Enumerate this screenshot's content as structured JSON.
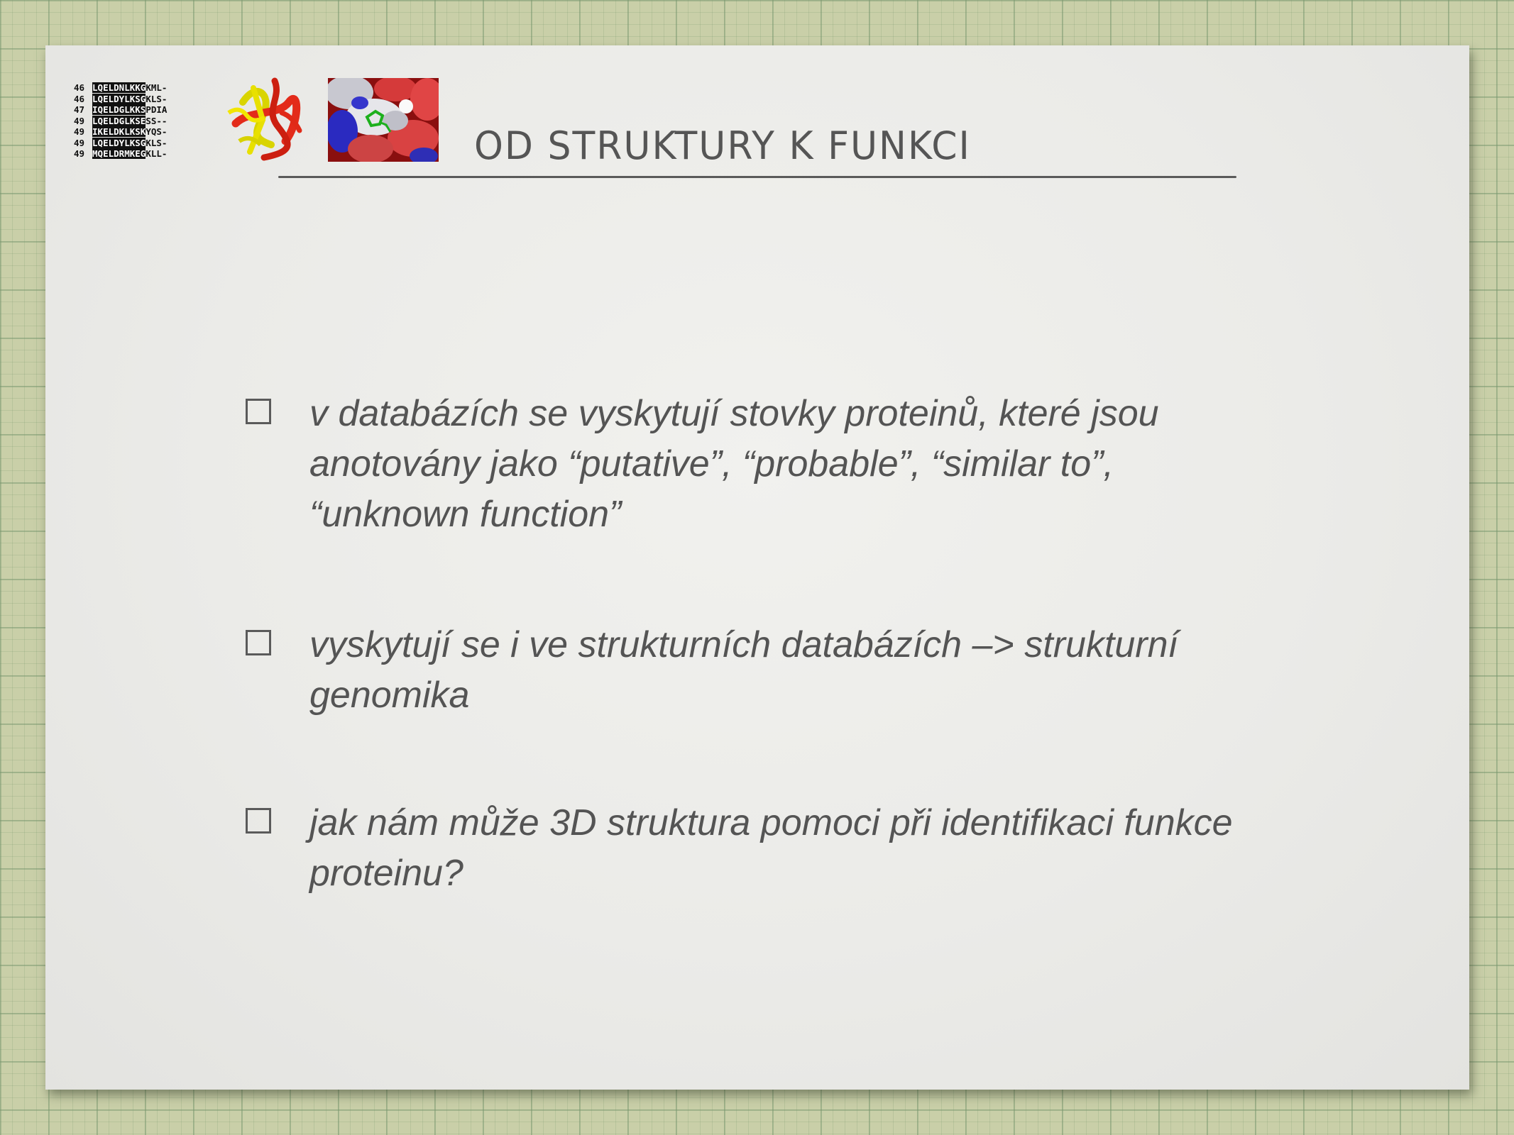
{
  "slide": {
    "title": "OD STRUKTURY K FUNKCI",
    "images": {
      "alignment": {
        "icon": "sequence-alignment-image",
        "rows": [
          {
            "num": "46",
            "seq": "LQELDNLKKGKML-"
          },
          {
            "num": "46",
            "seq": "LQELDYLKSGKLS-"
          },
          {
            "num": "47",
            "seq": "IQELDGLKKSPDIA"
          },
          {
            "num": "49",
            "seq": "LQELDGLKSESS--"
          },
          {
            "num": "49",
            "seq": "IKELDKLKSKYQS-"
          },
          {
            "num": "49",
            "seq": "LQELDYLKSGKLS-"
          },
          {
            "num": "49",
            "seq": "MQELDRMKEGKLL-"
          }
        ]
      },
      "ribbon": {
        "icon": "protein-ribbon-structure-image"
      },
      "surface": {
        "icon": "protein-surface-image"
      }
    },
    "bullets": [
      {
        "text": "v databázích se vyskytují stovky proteinů, které jsou anotovány jako “putative”, “probable”, “similar to”, “unknown function”"
      },
      {
        "text": "vyskytují se i ve strukturních databázích  –> strukturní genomika"
      },
      {
        "text": "jak nám může 3D struktura pomoci při identifikaci funkce proteinu?"
      }
    ]
  },
  "colors": {
    "background_grid": "#c9cfa8",
    "slide_bg": "#ececea",
    "text": "#545454"
  }
}
